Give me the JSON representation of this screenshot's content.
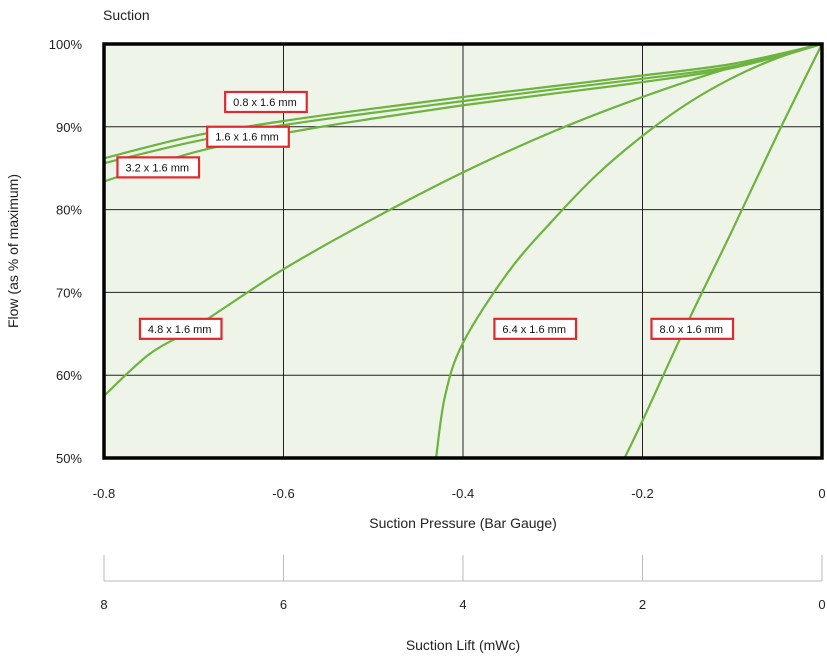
{
  "chart_data": {
    "type": "line",
    "title": "Suction",
    "xlabel": "Suction Pressure (Bar Gauge)",
    "ylabel": "Flow (as % of maximum)",
    "xlim": [
      -0.8,
      0
    ],
    "ylim": [
      50,
      100
    ],
    "x_ticks": [
      "-0.8",
      "-0.6",
      "-0.4",
      "-0.2",
      "0"
    ],
    "y_ticks": [
      "100%",
      "90%",
      "80%",
      "70%",
      "60%",
      "50%"
    ],
    "grid": true,
    "colors": {
      "series": "#6db33f",
      "label_border": "#e0282e",
      "plot_bg": "#eef5e8"
    },
    "series": [
      {
        "name": "0.8 x 1.6 mm",
        "x": [
          -0.8,
          -0.7,
          -0.6,
          -0.5,
          -0.4,
          -0.3,
          -0.2,
          -0.1,
          0
        ],
        "y": [
          86.2,
          88.9,
          90.7,
          92.2,
          93.6,
          94.9,
          96.2,
          97.6,
          100
        ]
      },
      {
        "name": "1.6 x 1.6 mm",
        "x": [
          -0.8,
          -0.7,
          -0.6,
          -0.5,
          -0.4,
          -0.3,
          -0.2,
          -0.1,
          0
        ],
        "y": [
          85.6,
          88.2,
          90.2,
          91.7,
          93.1,
          94.5,
          95.8,
          97.3,
          100
        ]
      },
      {
        "name": "3.2 x 1.6 mm",
        "x": [
          -0.8,
          -0.7,
          -0.6,
          -0.5,
          -0.4,
          -0.3,
          -0.2,
          -0.1,
          0
        ],
        "y": [
          83.4,
          86.9,
          89.2,
          91.0,
          92.6,
          94.0,
          95.4,
          97.1,
          100
        ]
      },
      {
        "name": "4.8 x 1.6 mm",
        "x": [
          -0.8,
          -0.75,
          -0.7,
          -0.6,
          -0.5,
          -0.4,
          -0.3,
          -0.2,
          -0.1,
          0
        ],
        "y": [
          57.5,
          62.5,
          65.7,
          72.8,
          78.9,
          84.5,
          89.4,
          93.6,
          97.2,
          100
        ]
      },
      {
        "name": "6.4 x 1.6 mm",
        "x": [
          -0.43,
          -0.42,
          -0.4,
          -0.35,
          -0.3,
          -0.25,
          -0.2,
          -0.15,
          -0.1,
          -0.05,
          0
        ],
        "y": [
          50.0,
          57.5,
          63.9,
          72.4,
          78.7,
          84.3,
          88.9,
          92.8,
          95.9,
          98.3,
          100
        ]
      },
      {
        "name": "8.0 x 1.6 mm",
        "x": [
          -0.22,
          -0.2,
          -0.15,
          -0.1,
          -0.05,
          0
        ],
        "y": [
          50.0,
          54.5,
          66.3,
          77.5,
          89.0,
          100
        ]
      }
    ],
    "secondary_axis": {
      "label": "Suction Lift (mWc)",
      "ticks": [
        "8",
        "6",
        "4",
        "2",
        "0"
      ],
      "range": [
        8,
        0
      ]
    }
  }
}
